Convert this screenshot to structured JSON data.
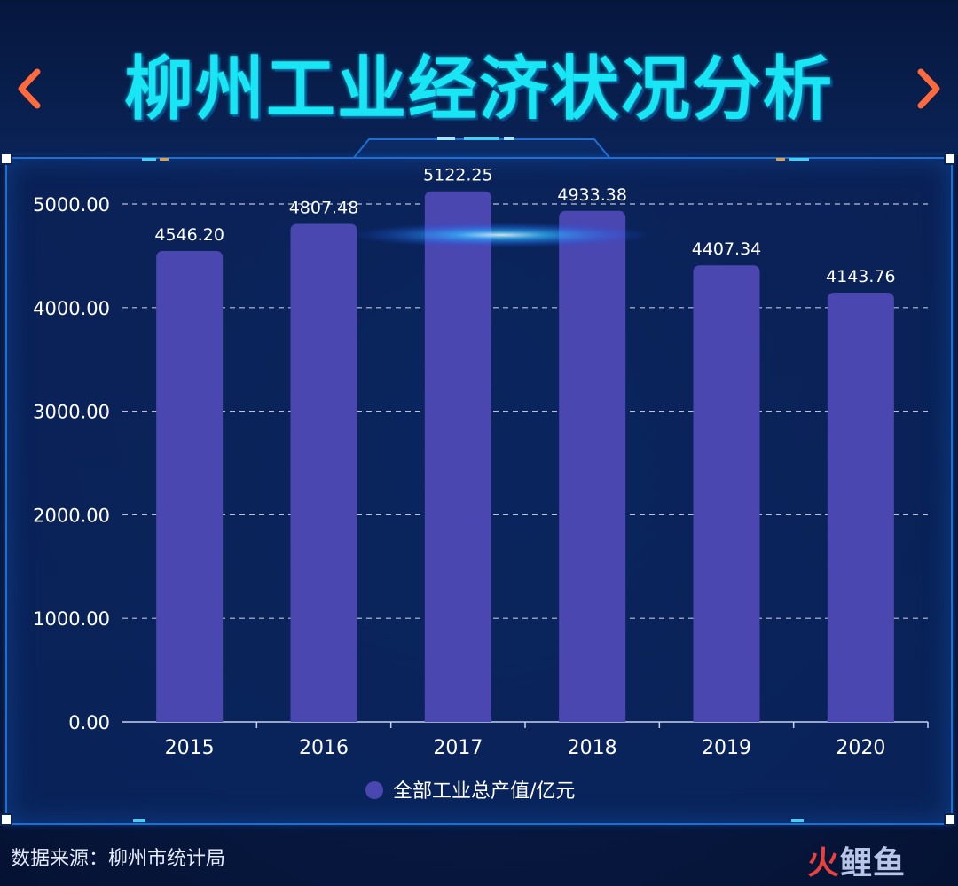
{
  "title": "柳州工业经济状况分析",
  "source_text": "数据来源：柳州市统计局",
  "watermark": {
    "part1": "火",
    "part2": "鲤鱼"
  },
  "colors": {
    "bar": "#4a47b0",
    "title": "#19e6f5",
    "grid": "#d8def0",
    "arrow": "#ff6a3d"
  },
  "chart_data": {
    "type": "bar",
    "categories": [
      "2015",
      "2016",
      "2017",
      "2018",
      "2019",
      "2020"
    ],
    "series": [
      {
        "name": "全部工业总产值/亿元",
        "values": [
          4546.2,
          4807.48,
          5122.25,
          4933.38,
          4407.34,
          4143.76
        ]
      }
    ],
    "data_labels": [
      "4546.20",
      "4807.48",
      "5122.25",
      "4933.38",
      "4407.34",
      "4143.76"
    ],
    "y_ticks": [
      "0.00",
      "1000.00",
      "2000.00",
      "3000.00",
      "4000.00",
      "5000.00"
    ],
    "ylim": [
      0,
      5000
    ],
    "grid": true,
    "legend_position": "bottom-center"
  }
}
